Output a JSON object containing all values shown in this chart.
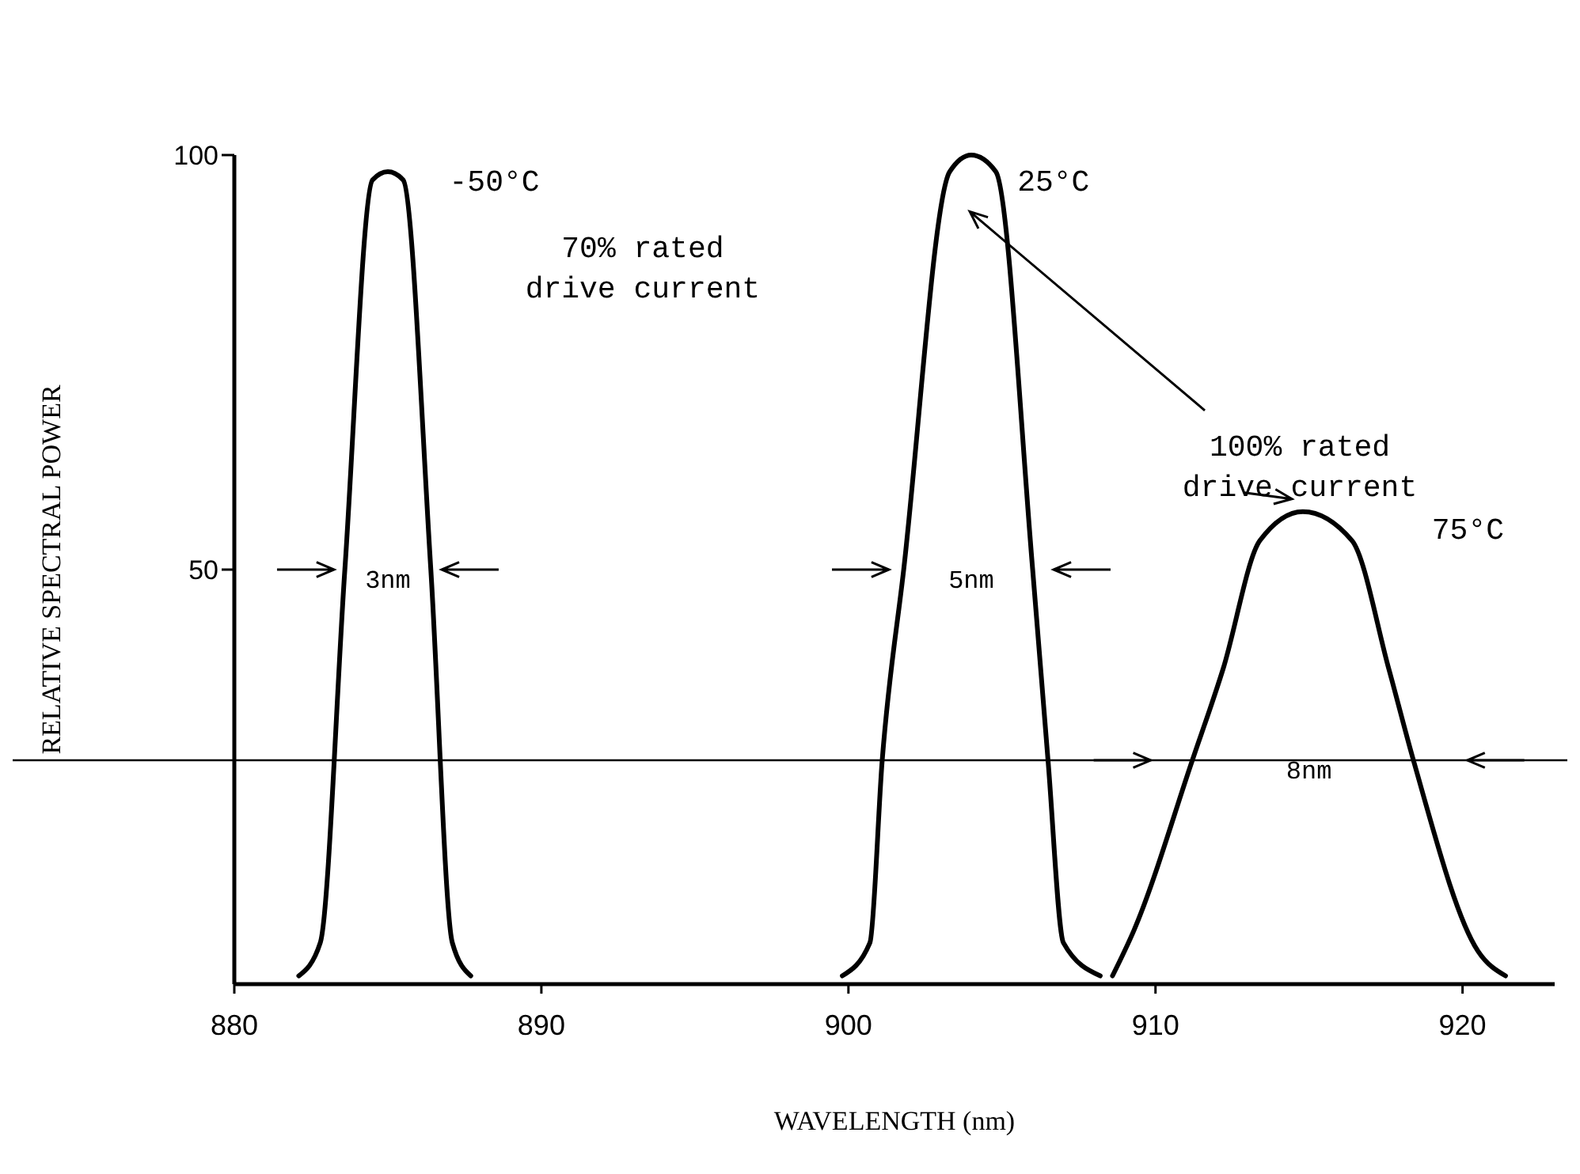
{
  "chart_data": {
    "type": "line",
    "xlabel": "WAVELENGTH (nm)",
    "ylabel": "RELATIVE SPECTRAL POWER",
    "xlim": [
      880,
      923
    ],
    "xticks": [
      880,
      890,
      900,
      910,
      920
    ],
    "ylim": [
      0,
      100
    ],
    "yticks": [
      50,
      100
    ],
    "grid": false,
    "marker": "none",
    "line_style": "solid",
    "series": [
      {
        "color": "#000000",
        "x": [
          882.1,
          882.8,
          883.6,
          884.5,
          885.0,
          885.5,
          886.4,
          887.1,
          887.7
        ],
        "values": [
          1,
          5,
          50,
          97,
          98,
          97,
          50,
          5,
          1
        ]
      },
      {
        "color": "#000000",
        "x": [
          899.8,
          900.7,
          901.1,
          901.8,
          903.3,
          904.0,
          904.8,
          906.0,
          906.5,
          907.0,
          908.2
        ],
        "values": [
          1,
          5,
          27,
          50,
          98,
          100,
          98,
          50,
          27,
          5,
          1
        ]
      },
      {
        "color": "#000000",
        "x": [
          908.6,
          909.3,
          911.2,
          912.2,
          913.4,
          914.8,
          916.4,
          917.6,
          918.4,
          920.5,
          921.4
        ],
        "values": [
          1,
          6.5,
          27,
          38,
          53.5,
          57,
          53.5,
          38,
          27,
          4,
          1
        ]
      }
    ],
    "ref_lines": [
      {
        "axis": "y",
        "value": 27,
        "color": "#000000"
      }
    ],
    "annotations": [
      "-50°C",
      "70% rated\ndrive current",
      "25°C",
      "100% rated\ndrive current",
      "75°C",
      "3nm",
      "5nm",
      "8nm"
    ]
  }
}
